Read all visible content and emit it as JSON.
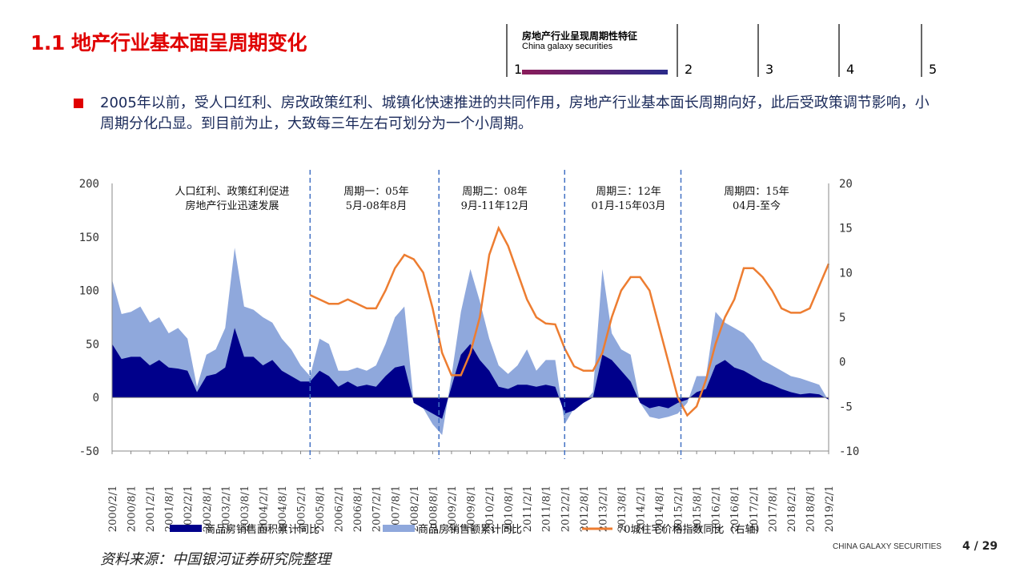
{
  "title": "1.1 地产行业基本面呈周期变化",
  "nav": {
    "section_title": "房地产行业呈现周期性特征",
    "section_subtitle": "China galaxy securities",
    "items": [
      "1",
      "2",
      "3",
      "4",
      "5"
    ],
    "active": "1"
  },
  "bullet": "2005年以前，受人口红利、房改政策红利、城镇化快速推进的共同作用，房地产行业基本面长周期向好，此后受政策调节影响，小周期分化凸显。到目前为止，大致每三年左右可划分为一个小周期。",
  "source": "资料来源：中国银河证券研究院整理",
  "footer": {
    "brand": "CHINA GALAXY SECURITIES",
    "page": "4 / 29"
  },
  "chart_data": {
    "type": "area+line",
    "x_start": "2000/2",
    "x_step_months": 3,
    "x_ticks": [
      "2000/2/1",
      "2000/8/1",
      "2001/2/1",
      "2001/8/1",
      "2002/2/1",
      "2002/8/1",
      "2003/2/1",
      "2003/8/1",
      "2004/2/1",
      "2004/8/1",
      "2005/2/1",
      "2005/8/1",
      "2006/2/1",
      "2006/8/1",
      "2007/2/1",
      "2007/8/1",
      "2008/2/1",
      "2008/8/1",
      "2009/2/1",
      "2009/8/1",
      "2010/2/1",
      "2010/8/1",
      "2011/2/1",
      "2011/8/1",
      "2012/2/1",
      "2012/8/1",
      "2013/2/1",
      "2013/8/1",
      "2014/2/1",
      "2014/8/1",
      "2015/2/1",
      "2015/8/1",
      "2016/2/1",
      "2016/8/1",
      "2017/2/1",
      "2017/8/1",
      "2018/2/1",
      "2018/8/1",
      "2019/2/1"
    ],
    "y_left": {
      "min": -50,
      "max": 200,
      "ticks": [
        200,
        150,
        100,
        50,
        0,
        -50
      ]
    },
    "y_right": {
      "min": -10,
      "max": 20,
      "ticks": [
        20,
        15,
        10,
        5,
        0,
        -5,
        -10
      ]
    },
    "series": [
      {
        "name": "商品房销售额累计同比",
        "axis": "left",
        "kind": "area",
        "color": "#8fa8dc",
        "values": [
          110,
          78,
          80,
          85,
          70,
          75,
          60,
          65,
          55,
          10,
          40,
          45,
          65,
          140,
          85,
          82,
          75,
          70,
          55,
          45,
          30,
          20,
          55,
          50,
          25,
          25,
          28,
          25,
          30,
          50,
          75,
          85,
          -5,
          -10,
          -25,
          -35,
          20,
          80,
          120,
          90,
          55,
          30,
          22,
          30,
          45,
          25,
          35,
          35,
          -25,
          -10,
          -5,
          5,
          120,
          60,
          45,
          40,
          -5,
          -18,
          -20,
          -18,
          -15,
          -5,
          20,
          20,
          80,
          70,
          65,
          60,
          50,
          35,
          30,
          25,
          20,
          18,
          15,
          12,
          -3
        ]
      },
      {
        "name": "商品房销售面积累计同比",
        "axis": "left",
        "kind": "area",
        "color": "#00008b",
        "values": [
          50,
          36,
          38,
          38,
          30,
          35,
          28,
          27,
          25,
          5,
          20,
          22,
          28,
          65,
          38,
          38,
          30,
          35,
          25,
          20,
          15,
          15,
          25,
          20,
          10,
          15,
          10,
          12,
          10,
          20,
          28,
          30,
          -5,
          -10,
          -15,
          -20,
          10,
          40,
          50,
          35,
          25,
          10,
          8,
          12,
          12,
          10,
          12,
          10,
          -15,
          -12,
          -5,
          0,
          40,
          35,
          25,
          15,
          -5,
          -10,
          -8,
          -10,
          -5,
          -2,
          5,
          8,
          30,
          35,
          28,
          25,
          20,
          15,
          12,
          8,
          5,
          3,
          4,
          3,
          -2
        ]
      },
      {
        "name": "70城住宅价格指数同比（右轴）",
        "axis": "right",
        "kind": "line",
        "color": "#ed7d31",
        "values": [
          null,
          null,
          null,
          null,
          null,
          null,
          null,
          null,
          null,
          null,
          null,
          null,
          null,
          null,
          null,
          null,
          null,
          null,
          null,
          null,
          null,
          7.5,
          7,
          6.5,
          6.5,
          7,
          6.5,
          6,
          6,
          8,
          10.5,
          12,
          11.5,
          10,
          6,
          1,
          -1.5,
          -1.5,
          1,
          5,
          12,
          15,
          13,
          10,
          7,
          5,
          4.3,
          4.2,
          1.5,
          -0.5,
          -1,
          -1,
          1,
          5,
          8,
          9.5,
          9.5,
          8,
          4,
          0,
          -4,
          -6,
          -5,
          -2,
          2,
          5,
          7,
          10.5,
          10.5,
          9.5,
          8,
          6,
          5.5,
          5.5,
          6,
          8.5,
          11
        ]
      }
    ],
    "period_dividers": [
      "2005/5",
      "2008/10",
      "2012/2",
      "2015/3"
    ],
    "annotations": [
      [
        "人口红利、政策红利促进",
        "房地产行业迅速发展"
      ],
      [
        "周期一：05年",
        "5月-08年8月"
      ],
      [
        "周期二：08年",
        "9月-11年12月"
      ],
      [
        "周期三：12年",
        "01月-15年03月"
      ],
      [
        "周期四：15年",
        "04月-至今"
      ]
    ]
  }
}
